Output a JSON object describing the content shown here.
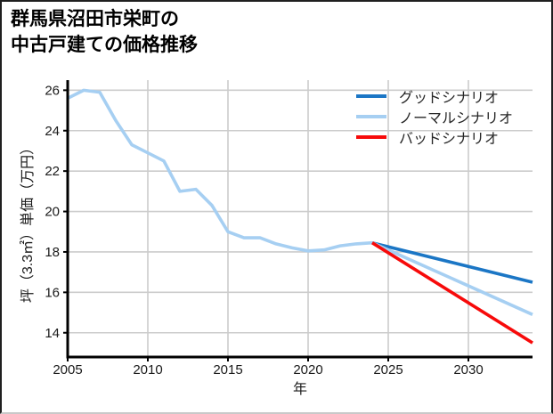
{
  "title": {
    "line1": "群馬県沼田市栄町の",
    "line2": "中古戸建ての価格推移"
  },
  "colors": {
    "good_scenario": "#1b76c5",
    "normal_scenario": "#a6cff2",
    "bad_scenario": "#f70a0a",
    "historical_line": "#a6cff2",
    "grid": "#cccccc",
    "axis": "#000000",
    "tick_text": "#1a1a1a",
    "legend_text": "#262626"
  },
  "chart_data": {
    "type": "line",
    "title": "群馬県沼田市栄町の中古戸建ての価格推移",
    "xlabel": "年",
    "ylabel": "坪（3.3㎡）単価（万円）",
    "xlim": [
      2005,
      2034
    ],
    "ylim": [
      12.8,
      26.5
    ],
    "xticks": [
      2005,
      2010,
      2015,
      2020,
      2025,
      2030
    ],
    "yticks": [
      14,
      16,
      18,
      20,
      22,
      24,
      26
    ],
    "grid": true,
    "legend_position": "upper-right-inside-no-frame",
    "series": [
      {
        "name": "",
        "in_legend": false,
        "color": "#a6cff2",
        "x": [
          2005,
          2006,
          2007,
          2008,
          2009,
          2010,
          2011,
          2012,
          2013,
          2014,
          2015,
          2016,
          2017,
          2018,
          2019,
          2020,
          2021,
          2022,
          2023,
          2024
        ],
        "y": [
          25.6,
          26.0,
          25.9,
          24.5,
          23.3,
          22.9,
          22.5,
          21.0,
          21.1,
          20.3,
          19.0,
          18.7,
          18.7,
          18.4,
          18.2,
          18.05,
          18.1,
          18.3,
          18.4,
          18.45
        ]
      },
      {
        "name": "グッドシナリオ",
        "in_legend": true,
        "color": "#1b76c5",
        "x": [
          2024,
          2034
        ],
        "y": [
          18.45,
          16.5
        ]
      },
      {
        "name": "ノーマルシナリオ",
        "in_legend": true,
        "color": "#a6cff2",
        "x": [
          2024,
          2034
        ],
        "y": [
          18.45,
          14.9
        ]
      },
      {
        "name": "バッドシナリオ",
        "in_legend": true,
        "color": "#f70a0a",
        "x": [
          2024,
          2034
        ],
        "y": [
          18.45,
          13.5
        ]
      }
    ]
  }
}
